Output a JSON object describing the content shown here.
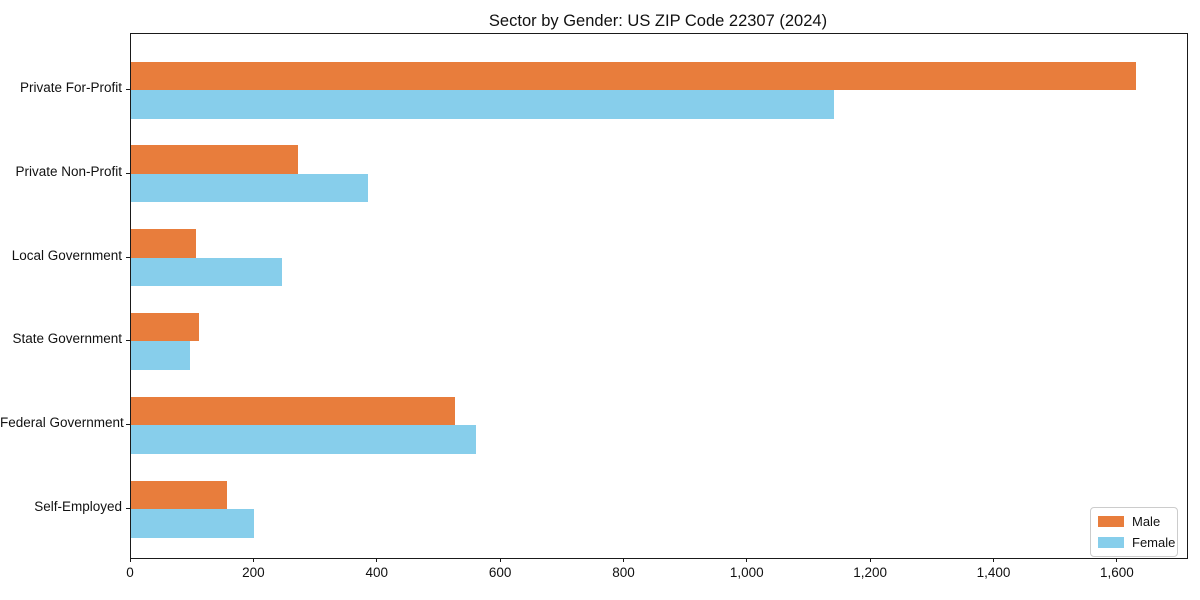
{
  "chart_data": {
    "type": "bar",
    "orientation": "horizontal",
    "title": "Sector by Gender: US ZIP Code 22307 (2024)",
    "categories": [
      "Private For-Profit",
      "Private Non-Profit",
      "Local Government",
      "State Government",
      "Federal Government",
      "Self-Employed"
    ],
    "series": [
      {
        "name": "Male",
        "color": "#e87d3c",
        "values": [
          1630,
          270,
          105,
          110,
          525,
          155
        ]
      },
      {
        "name": "Female",
        "color": "#87ceeb",
        "values": [
          1140,
          385,
          245,
          95,
          560,
          200
        ]
      }
    ],
    "xlim": [
      0,
      1712
    ],
    "xticks": [
      0,
      200,
      400,
      600,
      800,
      1000,
      1200,
      1400,
      1600
    ],
    "xtick_labels": [
      "0",
      "200",
      "400",
      "600",
      "800",
      "1,000",
      "1,200",
      "1,400",
      "1,600"
    ],
    "ylabel": "",
    "xlabel": "",
    "grid": false,
    "legend": {
      "position": "lower right"
    },
    "colors": {
      "axis": "#1a1a1a",
      "text": "#111111",
      "legend_border": "#cccccc"
    }
  }
}
